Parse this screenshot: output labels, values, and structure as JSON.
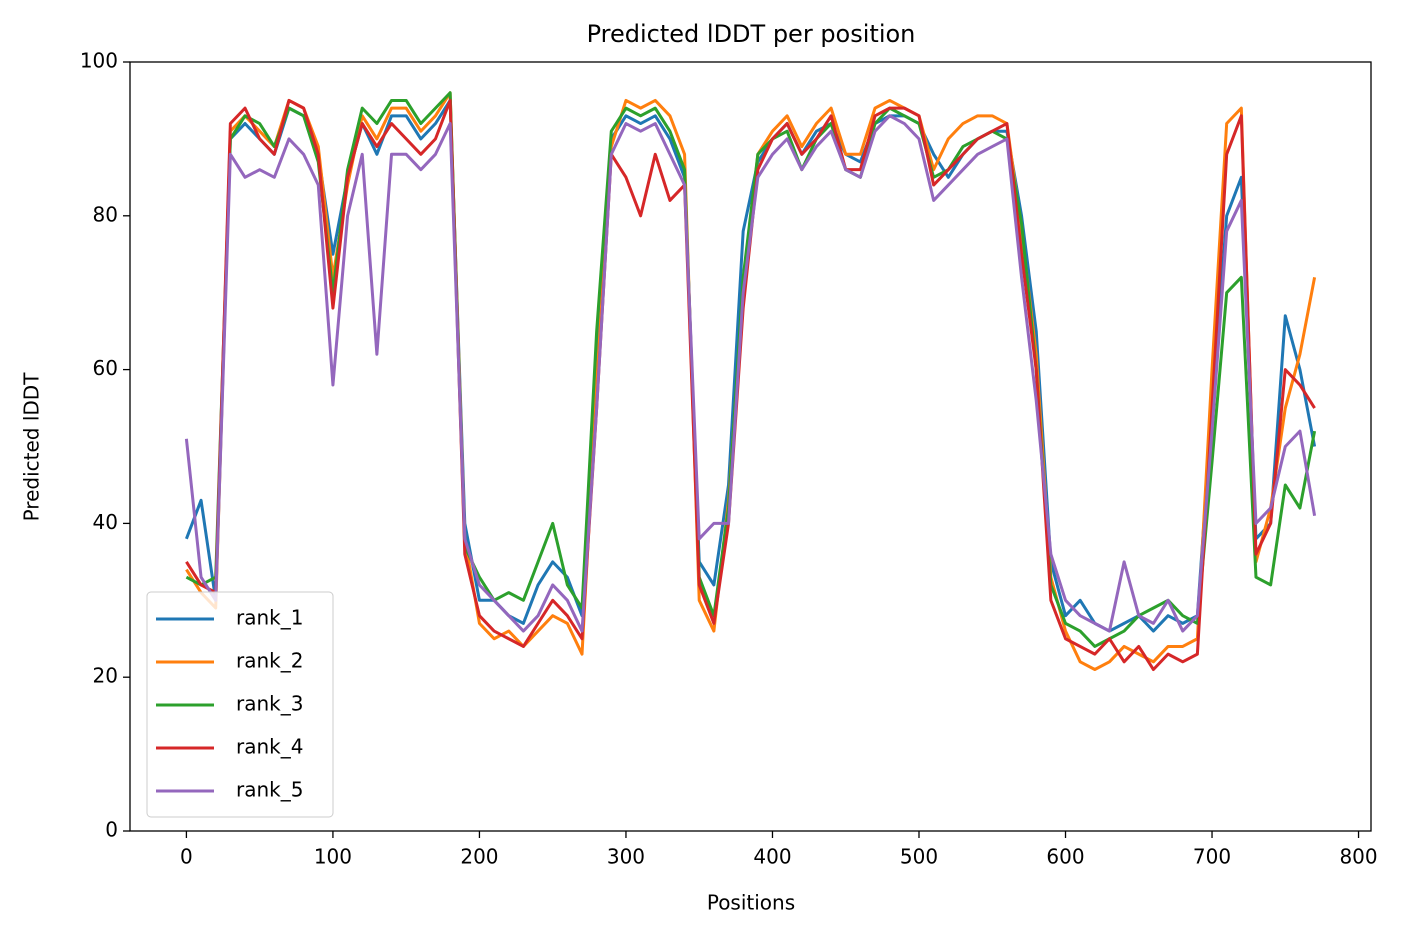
{
  "chart_data": {
    "type": "line",
    "title": "Predicted lDDT per position",
    "x_label": "Positions",
    "y_label": "Predicted lDDT",
    "x": [
      0,
      10,
      20,
      30,
      40,
      50,
      60,
      70,
      80,
      90,
      100,
      110,
      120,
      130,
      140,
      150,
      160,
      170,
      180,
      190,
      200,
      210,
      220,
      230,
      240,
      250,
      260,
      270,
      280,
      290,
      300,
      310,
      320,
      330,
      340,
      350,
      360,
      370,
      380,
      390,
      400,
      410,
      420,
      430,
      440,
      450,
      460,
      470,
      480,
      490,
      500,
      510,
      520,
      530,
      540,
      550,
      560,
      570,
      580,
      590,
      600,
      610,
      620,
      630,
      640,
      650,
      660,
      670,
      680,
      690,
      700,
      710,
      720,
      730,
      740,
      750,
      760,
      770
    ],
    "series": [
      {
        "name": "rank_1",
        "color": "#1f77b4",
        "values": [
          38,
          43,
          30,
          90,
          92,
          90,
          88,
          94,
          93,
          88,
          75,
          85,
          92,
          88,
          93,
          93,
          90,
          92,
          95,
          40,
          30,
          30,
          28,
          27,
          32,
          35,
          33,
          28,
          60,
          90,
          93,
          92,
          93,
          90,
          85,
          35,
          32,
          45,
          78,
          87,
          90,
          92,
          88,
          91,
          92,
          88,
          87,
          92,
          93,
          93,
          92,
          88,
          85,
          88,
          90,
          91,
          91,
          80,
          65,
          35,
          28,
          30,
          27,
          26,
          27,
          28,
          26,
          28,
          27,
          28,
          55,
          80,
          85,
          38,
          40,
          67,
          60,
          50
        ]
      },
      {
        "name": "rank_2",
        "color": "#ff7f0e",
        "values": [
          34,
          31,
          29,
          91,
          93,
          91,
          89,
          95,
          94,
          89,
          72,
          84,
          93,
          90,
          94,
          94,
          91,
          93,
          96,
          38,
          27,
          25,
          26,
          24,
          26,
          28,
          27,
          23,
          58,
          89,
          95,
          94,
          95,
          93,
          88,
          30,
          26,
          43,
          70,
          88,
          91,
          93,
          89,
          92,
          94,
          88,
          88,
          94,
          95,
          94,
          93,
          86,
          90,
          92,
          93,
          93,
          92,
          78,
          62,
          33,
          26,
          22,
          21,
          22,
          24,
          23,
          22,
          24,
          24,
          25,
          60,
          92,
          94,
          35,
          42,
          55,
          62,
          72
        ]
      },
      {
        "name": "rank_3",
        "color": "#2ca02c",
        "values": [
          33,
          32,
          33,
          90,
          93,
          92,
          89,
          94,
          93,
          87,
          70,
          86,
          94,
          92,
          95,
          95,
          92,
          94,
          96,
          37,
          33,
          30,
          31,
          30,
          35,
          40,
          32,
          29,
          65,
          91,
          94,
          93,
          94,
          91,
          86,
          33,
          28,
          42,
          72,
          88,
          90,
          91,
          86,
          90,
          92,
          86,
          85,
          92,
          94,
          93,
          92,
          85,
          86,
          89,
          90,
          91,
          90,
          79,
          60,
          32,
          27,
          26,
          24,
          25,
          26,
          28,
          29,
          30,
          28,
          27,
          48,
          70,
          72,
          33,
          32,
          45,
          42,
          52
        ]
      },
      {
        "name": "rank_4",
        "color": "#d62728",
        "values": [
          35,
          32,
          31,
          92,
          94,
          90,
          88,
          95,
          94,
          88,
          68,
          85,
          92,
          89,
          92,
          90,
          88,
          90,
          95,
          36,
          28,
          26,
          25,
          24,
          27,
          30,
          28,
          25,
          55,
          88,
          85,
          80,
          88,
          82,
          84,
          32,
          27,
          40,
          68,
          86,
          90,
          92,
          88,
          90,
          93,
          86,
          86,
          93,
          94,
          94,
          93,
          84,
          86,
          88,
          90,
          91,
          92,
          75,
          60,
          30,
          25,
          24,
          23,
          25,
          22,
          24,
          21,
          23,
          22,
          23,
          55,
          88,
          93,
          36,
          40,
          60,
          58,
          55
        ]
      },
      {
        "name": "rank_5",
        "color": "#9467bd",
        "values": [
          51,
          33,
          30,
          88,
          85,
          86,
          85,
          90,
          88,
          84,
          58,
          80,
          88,
          62,
          88,
          88,
          86,
          88,
          92,
          38,
          32,
          30,
          28,
          26,
          28,
          32,
          30,
          26,
          55,
          88,
          92,
          91,
          92,
          88,
          84,
          38,
          40,
          40,
          70,
          85,
          88,
          90,
          86,
          89,
          91,
          86,
          85,
          91,
          93,
          92,
          90,
          82,
          84,
          86,
          88,
          89,
          90,
          72,
          56,
          36,
          30,
          28,
          27,
          26,
          35,
          28,
          27,
          30,
          26,
          28,
          52,
          78,
          82,
          40,
          42,
          50,
          52,
          41
        ]
      }
    ],
    "xlim": [
      -38.5,
      808.5
    ],
    "ylim": [
      0,
      100
    ],
    "xticks": [
      0,
      100,
      200,
      300,
      400,
      500,
      600,
      700,
      800
    ],
    "yticks": [
      0,
      20,
      40,
      60,
      80,
      100
    ],
    "legend": "lower left"
  }
}
